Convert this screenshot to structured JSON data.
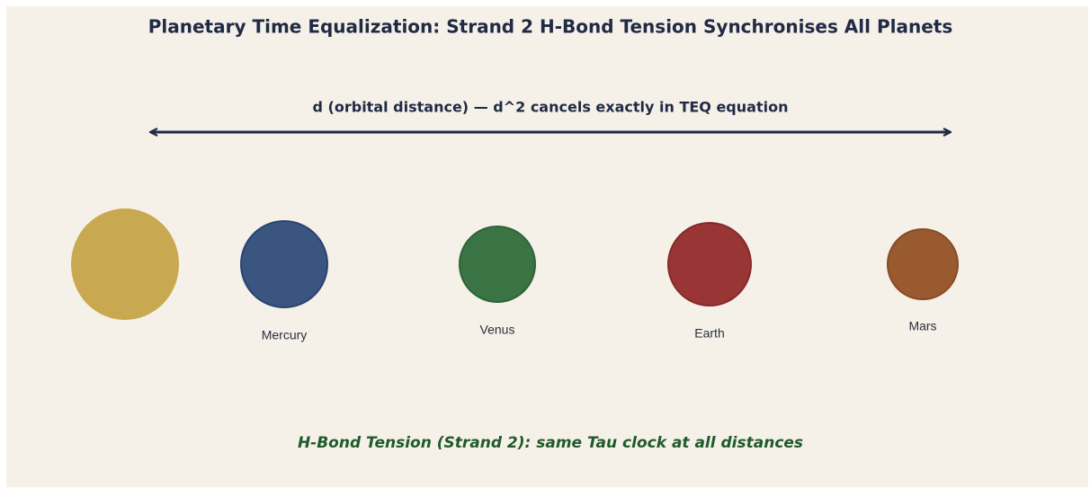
{
  "title": "Planetary Time Equalization: Strand 2 H-Bond Tension Synchronises All Planets",
  "arrow_label": "d  (orbital distance) — d^2 cancels exactly in TEQ equation",
  "planets": [
    {
      "label": "Mercury"
    },
    {
      "label": "Venus"
    },
    {
      "label": "Earth"
    },
    {
      "label": "Mars"
    }
  ],
  "caption": "H-Bond Tension (Strand 2): same Tau clock at all distances"
}
